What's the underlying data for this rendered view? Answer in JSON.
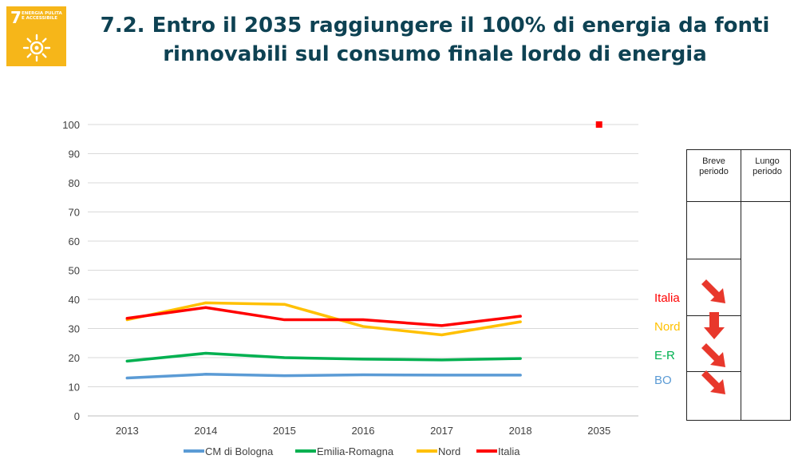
{
  "badge": {
    "number": "7",
    "text": "ENERGIA PULITA\nE ACCESSIBILE",
    "color": "#f6b619",
    "icon": "sun-icon"
  },
  "title": {
    "line1": "7.2. Entro il 2035 raggiungere il 100% di energia da fonti",
    "line2": "rinnovabili sul consumo finale lordo di energia"
  },
  "chart_data": {
    "type": "line",
    "categories": [
      "2013",
      "2014",
      "2015",
      "2016",
      "2017",
      "2018",
      "2035"
    ],
    "ylim": [
      0,
      100
    ],
    "yticks": [
      0,
      10,
      20,
      30,
      40,
      50,
      60,
      70,
      80,
      90,
      100
    ],
    "grid": true,
    "legend_position": "bottom",
    "series": [
      {
        "name": "CM di Bologna",
        "color": "#5b9bd5",
        "values": [
          13.0,
          14.3,
          13.8,
          14.1,
          14.0,
          14.0,
          null
        ]
      },
      {
        "name": "Emilia-Romagna",
        "color": "#00b050",
        "values": [
          18.8,
          21.5,
          20.0,
          19.5,
          19.2,
          19.7,
          null
        ]
      },
      {
        "name": "Nord",
        "color": "#ffc000",
        "values": [
          33.0,
          38.8,
          38.3,
          30.7,
          27.8,
          32.3,
          null
        ]
      },
      {
        "name": "Italia",
        "color": "#ff0000",
        "values": [
          33.5,
          37.2,
          33.0,
          33.0,
          31.0,
          34.2,
          null
        ]
      }
    ],
    "target": {
      "category": "2035",
      "value": 100,
      "color": "#ff0000"
    }
  },
  "trend_table": {
    "headers": [
      "Breve\nperiodo",
      "Lungo\nperiodo"
    ],
    "rows": [
      {
        "label": "Italia",
        "color": "#ff0000",
        "short_term_icon": "arrow-down-right-icon"
      },
      {
        "label": "Nord",
        "color": "#ffc000",
        "short_term_icon": "arrow-down-icon"
      },
      {
        "label": "E-R",
        "color": "#00b050",
        "short_term_icon": "arrow-down-right-icon"
      },
      {
        "label": "BO",
        "color": "#5b9bd5",
        "short_term_icon": "arrow-down-right-icon"
      }
    ],
    "arrow_color": "#e8382c"
  }
}
